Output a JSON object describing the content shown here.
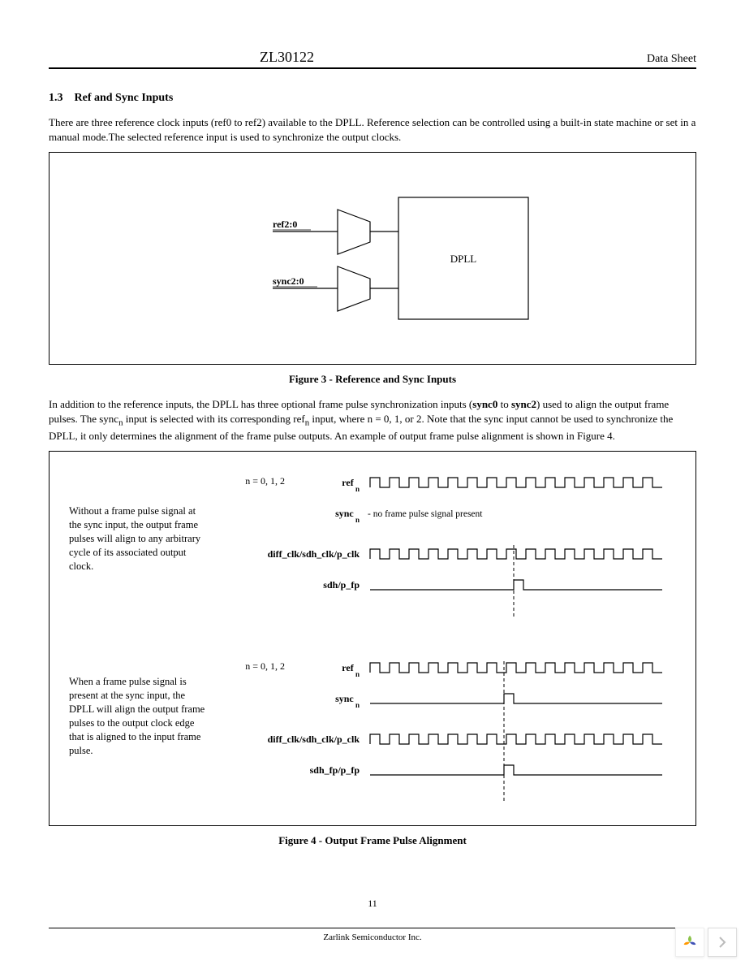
{
  "header": {
    "title": "ZL30122",
    "right": "Data Sheet"
  },
  "section": {
    "number": "1.3",
    "title": "Ref and Sync Inputs"
  },
  "para1": "There are three reference clock inputs (ref0 to ref2) available to the DPLL. Reference selection can be controlled using a built-in state machine or set in a manual mode.The selected reference input is used to synchronize the output clocks.",
  "fig3": {
    "caption": "Figure 3 - Reference and Sync Inputs",
    "ref_label": "ref2:0",
    "sync_label": "sync2:0",
    "dpll_label": "DPLL"
  },
  "para2_a": "In addition to the reference inputs, the DPLL has three optional frame pulse synchronization inputs (",
  "para2_b": "sync0",
  "para2_c": " to ",
  "para2_d": "sync2",
  "para2_e": ") used to align the output frame pulses. The sync",
  "para2_sub1": "n",
  "para2_f": " input is selected with its corresponding ref",
  "para2_sub2": "n",
  "para2_g": " input, where n = 0, 1, or 2. Note that the sync input cannot be used to synchronize the DPLL, it only determines the alignment of the frame pulse outputs. An example of output frame pulse alignment is shown in Figure 4.",
  "fig4": {
    "caption": "Figure 4 - Output Frame Pulse Alignment",
    "side1": "Without a frame pulse signal at the sync input, the output frame pulses will align to any arbitrary cycle of its associated output clock.",
    "side2": "When a frame pulse signal is present at the sync input, the DPLL will align the output frame pulses to the output clock edge that is aligned to the input frame pulse.",
    "n_label": "n = 0, 1, 2",
    "labels": {
      "ref": "ref",
      "sync": "sync",
      "no_signal": " - no frame pulse signal present",
      "diff_clk": "diff_clk/sdh_clk/p_clk",
      "sdh_fp1": "sdh/p_fp",
      "sdh_fp2": "sdh_fp/p_fp"
    }
  },
  "footer": {
    "pagenum": "11",
    "company": "Zarlink Semiconductor Inc."
  },
  "style": {
    "line_color": "#000000",
    "clock_period": 24,
    "clock_height": 12
  }
}
